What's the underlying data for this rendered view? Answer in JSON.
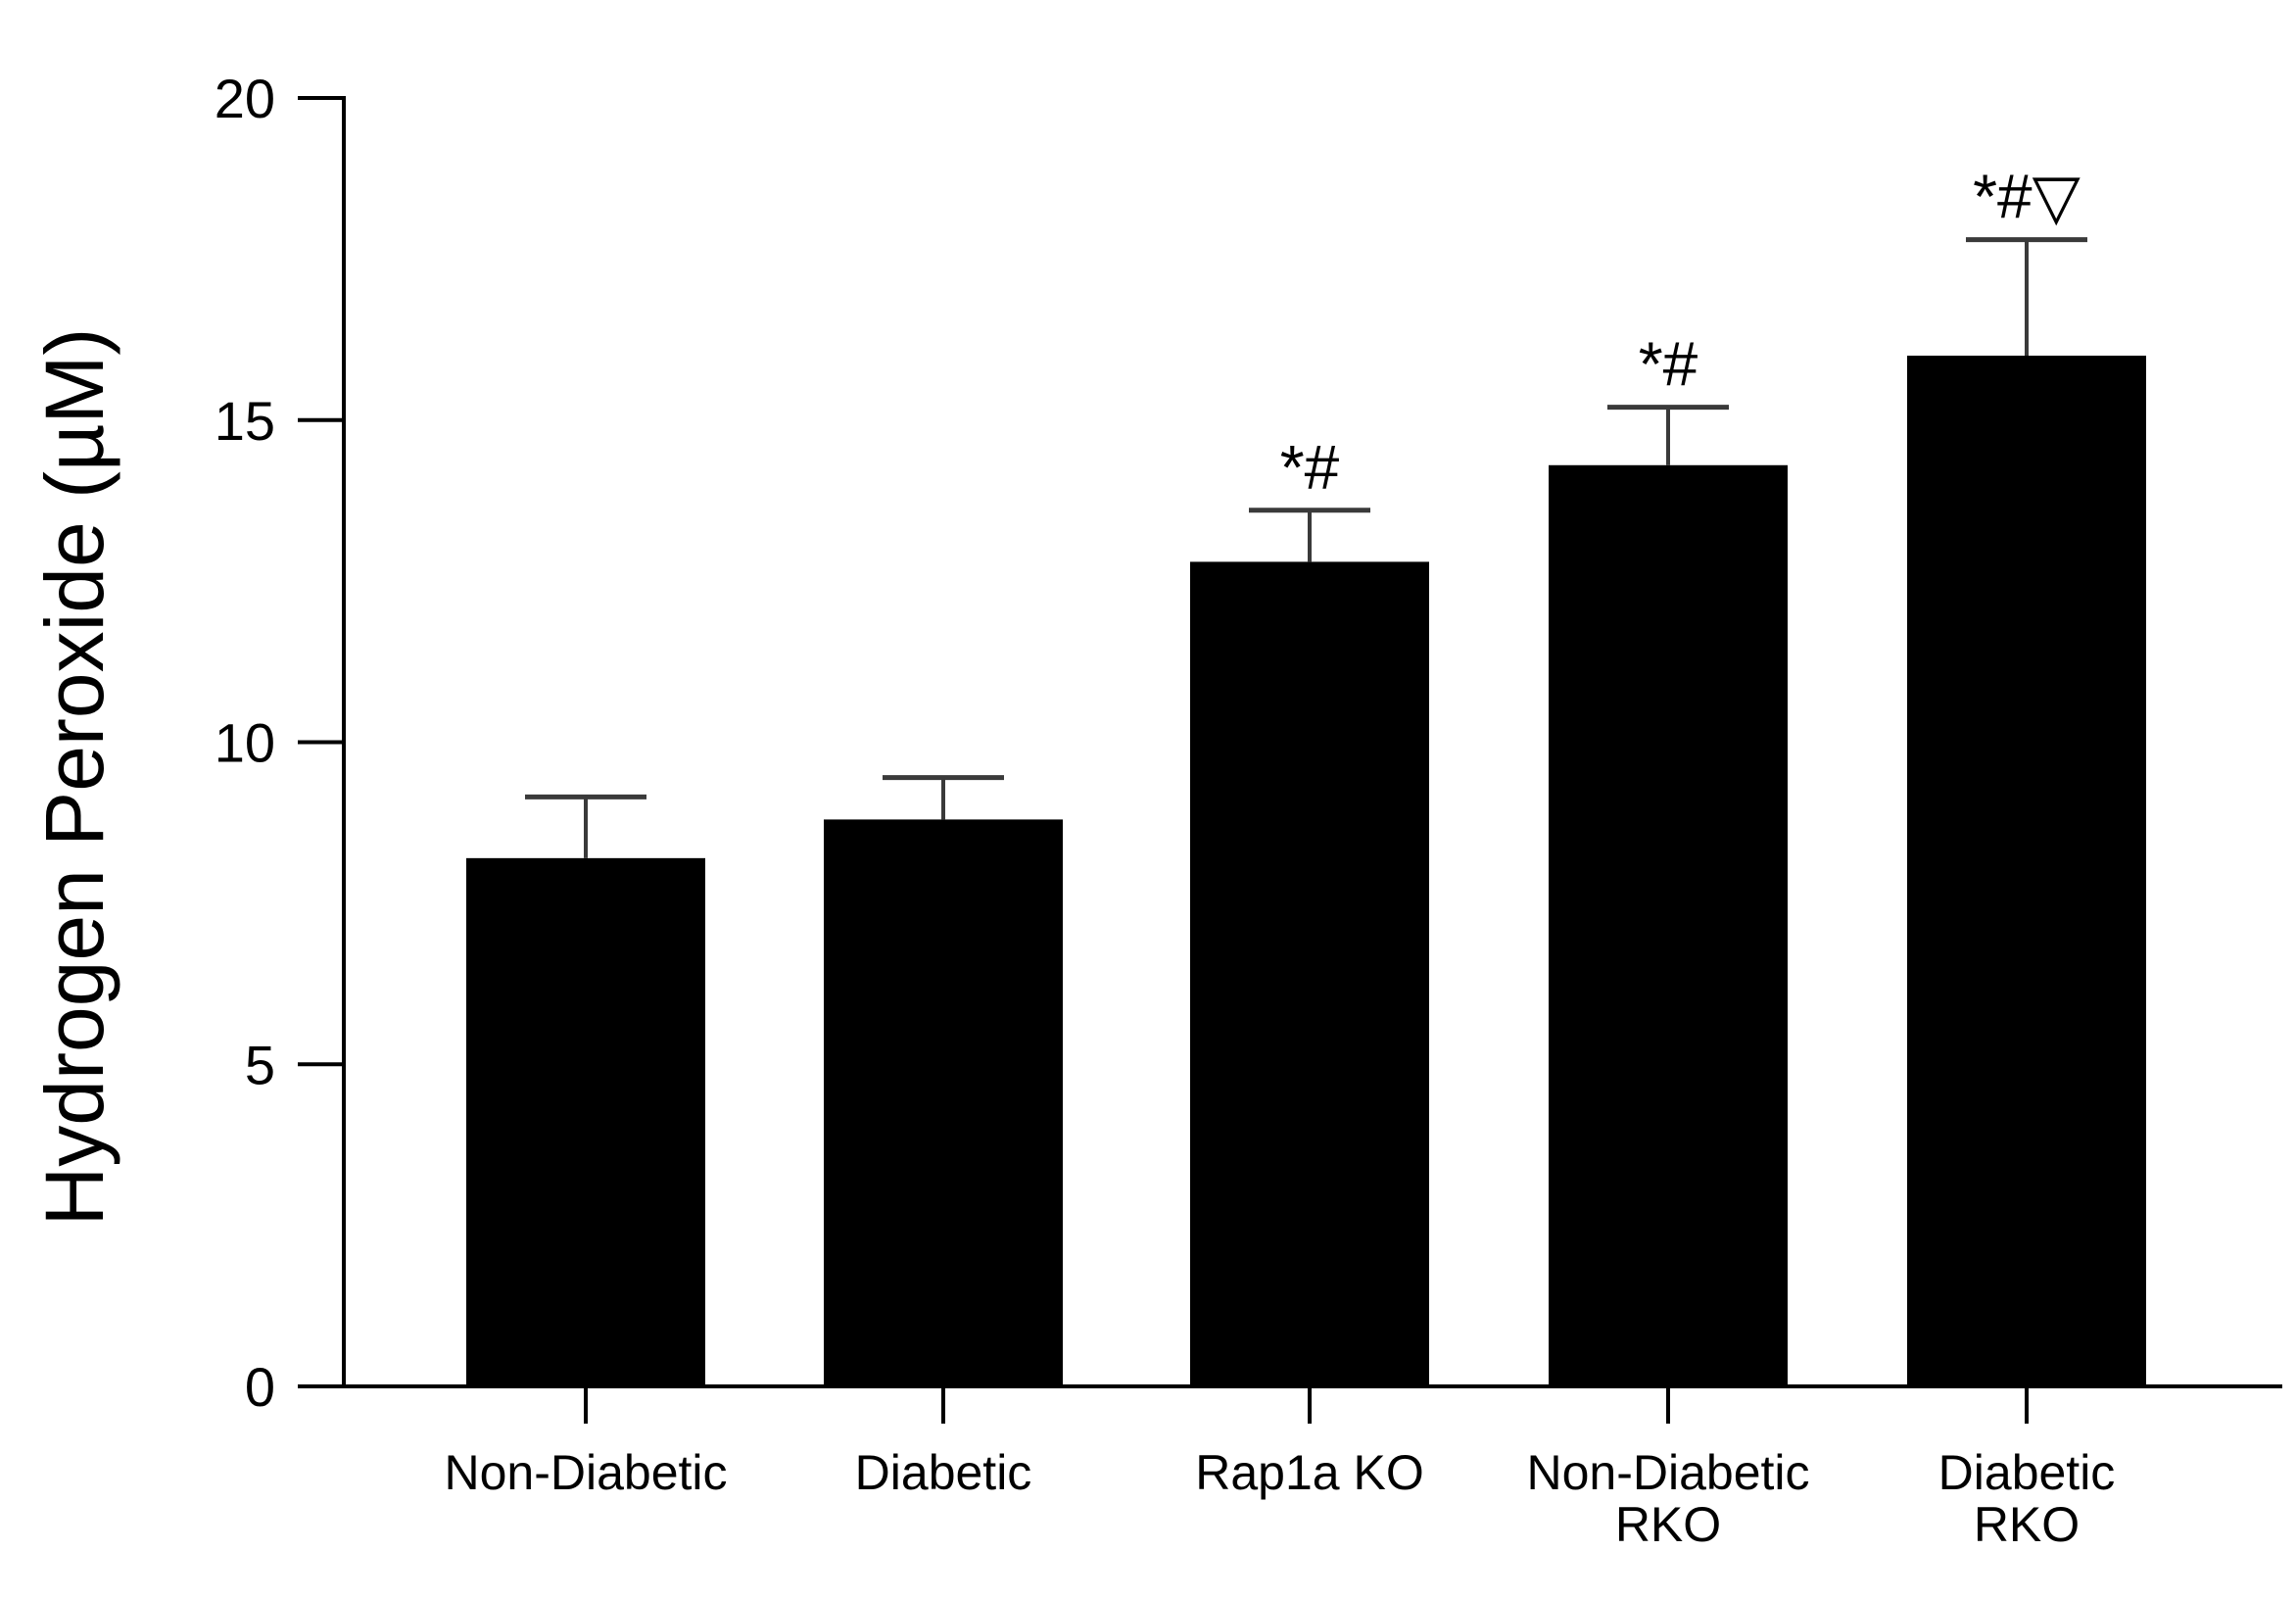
{
  "chart_data": {
    "type": "bar",
    "title": "",
    "xlabel": "",
    "ylabel": "Hydrogen Peroxide (µM)",
    "ylim": [
      0,
      20
    ],
    "yticks": [
      "0",
      "5",
      "10",
      "15",
      "20"
    ],
    "categories": [
      [
        "Non-Diabetic"
      ],
      [
        "Diabetic"
      ],
      [
        "Rap1a KO"
      ],
      [
        "Non-Diabetic",
        "RKO"
      ],
      [
        "Diabetic",
        "RKO"
      ]
    ],
    "values": [
      8.2,
      8.8,
      12.8,
      14.3,
      16.0
    ],
    "errors": [
      0.95,
      0.65,
      0.8,
      0.9,
      1.8
    ],
    "annotations": [
      "",
      "",
      "*#",
      "*#",
      "*#▽"
    ],
    "bar_color": "#000000"
  }
}
